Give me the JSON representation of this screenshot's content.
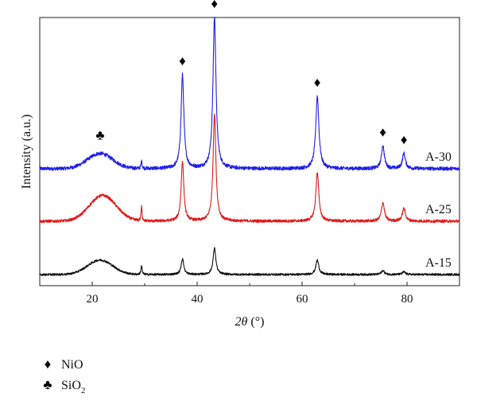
{
  "chart_data": {
    "type": "line",
    "title": "",
    "xlabel_var": "2θ",
    "xlabel_unit": "(°)",
    "ylabel": "Intensity (a.u.)",
    "xlim": [
      10,
      90
    ],
    "xticks": [
      20,
      40,
      60,
      80
    ],
    "y_ticks_shown": false,
    "grid": false,
    "series": [
      {
        "name": "A-30",
        "color": "#1f1fe6",
        "baseline": 0,
        "noise": 0.012,
        "hump": {
          "center": 21.5,
          "width": 3.4,
          "height": 0.1
        },
        "peaks": [
          {
            "x": 29.4,
            "height": 0.05,
            "width": 0.12
          },
          {
            "x": 37.2,
            "height": 0.62,
            "width": 0.32
          },
          {
            "x": 43.3,
            "height": 1.0,
            "width": 0.34
          },
          {
            "x": 62.9,
            "height": 0.48,
            "width": 0.36
          },
          {
            "x": 75.4,
            "height": 0.15,
            "width": 0.34
          },
          {
            "x": 79.4,
            "height": 0.1,
            "width": 0.34
          }
        ]
      },
      {
        "name": "A-25",
        "color": "#e01a1a",
        "baseline": 0,
        "noise": 0.01,
        "hump": {
          "center": 22.0,
          "width": 3.6,
          "height": 0.18
        },
        "peaks": [
          {
            "x": 29.4,
            "height": 0.1,
            "width": 0.12
          },
          {
            "x": 37.2,
            "height": 0.42,
            "width": 0.3
          },
          {
            "x": 43.3,
            "height": 0.75,
            "width": 0.32
          },
          {
            "x": 62.9,
            "height": 0.34,
            "width": 0.34
          },
          {
            "x": 75.4,
            "height": 0.13,
            "width": 0.34
          },
          {
            "x": 79.4,
            "height": 0.09,
            "width": 0.34
          }
        ]
      },
      {
        "name": "A-15",
        "color": "#111111",
        "baseline": 0,
        "noise": 0.008,
        "hump": {
          "center": 21.5,
          "width": 3.4,
          "height": 0.11
        },
        "peaks": [
          {
            "x": 29.4,
            "height": 0.07,
            "width": 0.12
          },
          {
            "x": 37.2,
            "height": 0.12,
            "width": 0.3
          },
          {
            "x": 43.3,
            "height": 0.2,
            "width": 0.32
          },
          {
            "x": 62.9,
            "height": 0.11,
            "width": 0.34
          },
          {
            "x": 75.4,
            "height": 0.03,
            "width": 0.34
          },
          {
            "x": 79.4,
            "height": 0.02,
            "width": 0.34
          }
        ]
      }
    ],
    "markers": [
      {
        "phase": "SiO2",
        "symbol": "♣",
        "x": 21.5
      },
      {
        "phase": "NiO",
        "symbol": "♦",
        "x": 37.2
      },
      {
        "phase": "NiO",
        "symbol": "♦",
        "x": 43.3
      },
      {
        "phase": "NiO",
        "symbol": "♦",
        "x": 62.9
      },
      {
        "phase": "NiO",
        "symbol": "♦",
        "x": 75.4
      },
      {
        "phase": "NiO",
        "symbol": "♦",
        "x": 79.4
      }
    ],
    "legend": {
      "placement": "bottom-left",
      "entries": [
        {
          "symbol": "♦",
          "label": "NiO",
          "subscript": ""
        },
        {
          "symbol": "♣",
          "label": "SiO",
          "subscript": "2"
        }
      ]
    }
  }
}
